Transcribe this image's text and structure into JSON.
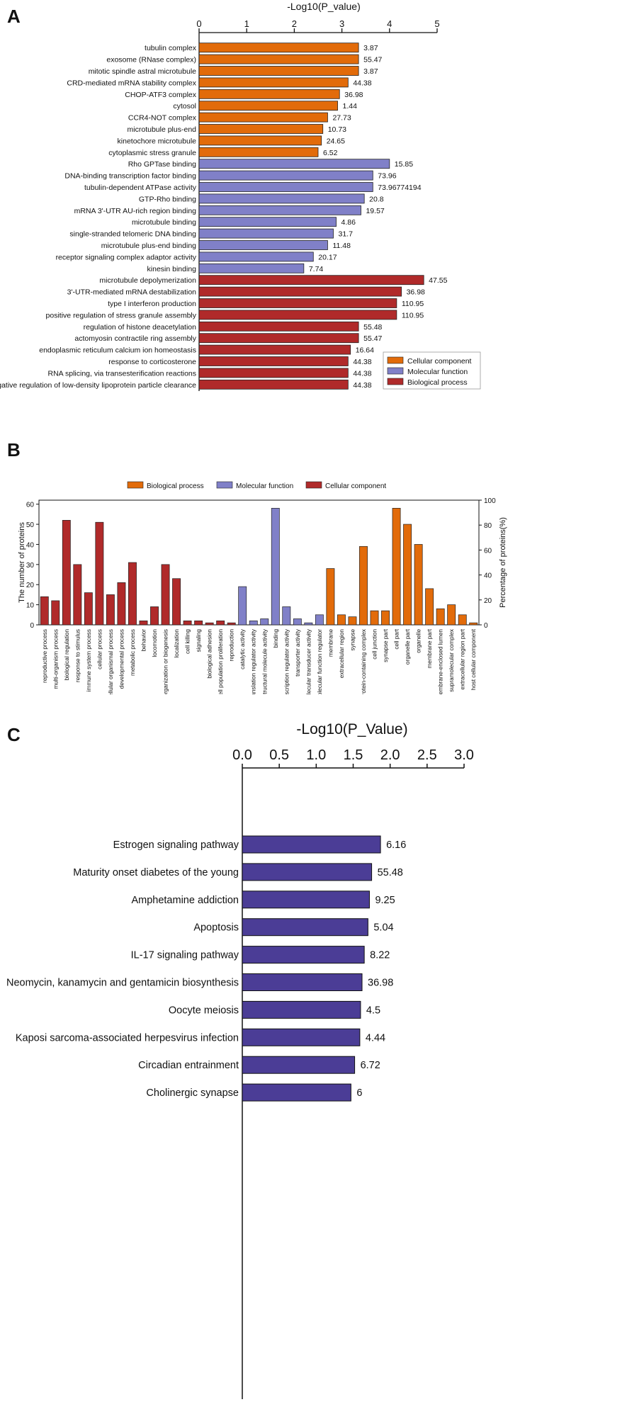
{
  "colors": {
    "cellular": "#e26b0a",
    "molecular": "#8080c8",
    "biological": "#b02a2a",
    "kegg": "#4b3d96",
    "axis": "#111111"
  },
  "panels": {
    "a": "A",
    "b": "B",
    "c": "C"
  },
  "chart_data": [
    {
      "id": "A",
      "type": "bar",
      "orientation": "horizontal",
      "xlabel": "-Log10(P_value)",
      "xlim": [
        0,
        5
      ],
      "xticks": [
        "0",
        "1",
        "2",
        "3",
        "4",
        "5"
      ],
      "legend": {
        "placement": "bottom-right",
        "entries": [
          {
            "name": "Cellular component",
            "color": "#e26b0a"
          },
          {
            "name": "Molecular function",
            "color": "#8080c8"
          },
          {
            "name": "Biological process",
            "color": "#b02a2a"
          }
        ]
      },
      "bars": [
        {
          "label": "tubulin complex",
          "value": 3.35,
          "annotation": "3.87",
          "group": "cellular"
        },
        {
          "label": "exosome (RNase complex)",
          "value": 3.35,
          "annotation": "55.47",
          "group": "cellular"
        },
        {
          "label": "mitotic spindle astral microtubule",
          "value": 3.35,
          "annotation": "3.87",
          "group": "cellular"
        },
        {
          "label": "CRD-mediated mRNA stability complex",
          "value": 3.13,
          "annotation": "44.38",
          "group": "cellular"
        },
        {
          "label": "CHOP-ATF3 complex",
          "value": 2.95,
          "annotation": "36.98",
          "group": "cellular"
        },
        {
          "label": "cytosol",
          "value": 2.91,
          "annotation": "1.44",
          "group": "cellular"
        },
        {
          "label": "CCR4-NOT complex",
          "value": 2.7,
          "annotation": "27.73",
          "group": "cellular"
        },
        {
          "label": "microtubule plus-end",
          "value": 2.6,
          "annotation": "10.73",
          "group": "cellular"
        },
        {
          "label": "kinetochore microtubule",
          "value": 2.57,
          "annotation": "24.65",
          "group": "cellular"
        },
        {
          "label": "cytoplasmic stress granule",
          "value": 2.5,
          "annotation": "6.52",
          "group": "cellular"
        },
        {
          "label": "Rho GPTase binding",
          "value": 4.0,
          "annotation": "15.85",
          "group": "molecular"
        },
        {
          "label": "DNA-binding transcription factor binding",
          "value": 3.65,
          "annotation": "73.96",
          "group": "molecular"
        },
        {
          "label": "tubulin-dependent ATPase activity",
          "value": 3.65,
          "annotation": "73.96774194",
          "group": "molecular"
        },
        {
          "label": "GTP-Rho binding",
          "value": 3.47,
          "annotation": "20.8",
          "group": "molecular"
        },
        {
          "label": "mRNA 3'-UTR AU-rich region binding",
          "value": 3.4,
          "annotation": "19.57",
          "group": "molecular"
        },
        {
          "label": "microtubule binding",
          "value": 2.88,
          "annotation": "4.86",
          "group": "molecular"
        },
        {
          "label": "single-stranded telomeric DNA binding",
          "value": 2.82,
          "annotation": "31.7",
          "group": "molecular"
        },
        {
          "label": "microtubule plus-end binding",
          "value": 2.7,
          "annotation": "11.48",
          "group": "molecular"
        },
        {
          "label": "receptor signaling complex adaptor activity",
          "value": 2.4,
          "annotation": "20.17",
          "group": "molecular"
        },
        {
          "label": "kinesin binding",
          "value": 2.2,
          "annotation": "7.74",
          "group": "molecular"
        },
        {
          "label": "microtubule depolymerization",
          "value": 4.72,
          "annotation": "47.55",
          "group": "biological"
        },
        {
          "label": "3'-UTR-mediated mRNA destabilization",
          "value": 4.25,
          "annotation": "36.98",
          "group": "biological"
        },
        {
          "label": "type I interferon production",
          "value": 4.15,
          "annotation": "110.95",
          "group": "biological"
        },
        {
          "label": "positive regulation of stress granule assembly",
          "value": 4.15,
          "annotation": "110.95",
          "group": "biological"
        },
        {
          "label": "regulation of histone deacetylation",
          "value": 3.35,
          "annotation": "55.48",
          "group": "biological"
        },
        {
          "label": "actomyosin contractile ring assembly",
          "value": 3.35,
          "annotation": "55.47",
          "group": "biological"
        },
        {
          "label": "endoplasmic reticulum calcium ion homeostasis",
          "value": 3.18,
          "annotation": "16.64",
          "group": "biological"
        },
        {
          "label": "response to corticosterone",
          "value": 3.13,
          "annotation": "44.38",
          "group": "biological"
        },
        {
          "label": "RNA splicing, via transesterification reactions",
          "value": 3.13,
          "annotation": "44.38",
          "group": "biological"
        },
        {
          "label": "negative regulation of low-density lipoprotein particle clearance",
          "value": 3.13,
          "annotation": "44.38",
          "group": "biological"
        }
      ]
    },
    {
      "id": "B",
      "type": "bar",
      "orientation": "vertical",
      "ylabel": "The number of proteins",
      "ylabel_right": "Percentage of proteins(%)",
      "ylim": [
        0,
        62
      ],
      "yticks": [
        "0",
        "10",
        "20",
        "30",
        "40",
        "50",
        "60"
      ],
      "yticks_right": [
        "0",
        "20",
        "40",
        "60",
        "80",
        "100"
      ],
      "legend": {
        "placement": "top-center",
        "entries": [
          {
            "name": "Biological process",
            "color": "#e26b0a"
          },
          {
            "name": "Molecular function",
            "color": "#8080c8"
          },
          {
            "name": "Cellular component",
            "color": "#b02a2a"
          }
        ]
      },
      "bars": [
        {
          "label": "reproductive process",
          "value": 14,
          "group": "biological"
        },
        {
          "label": "multi-organism process",
          "value": 12,
          "group": "biological"
        },
        {
          "label": "biological regulation",
          "value": 52,
          "group": "biological"
        },
        {
          "label": "response to stimulus",
          "value": 30,
          "group": "biological"
        },
        {
          "label": "immune system process",
          "value": 16,
          "group": "biological"
        },
        {
          "label": "cellular process",
          "value": 51,
          "group": "biological"
        },
        {
          "label": "multicellular organismal process",
          "value": 15,
          "group": "biological"
        },
        {
          "label": "developmental process",
          "value": 21,
          "group": "biological"
        },
        {
          "label": "metabolic process",
          "value": 31,
          "group": "biological"
        },
        {
          "label": "behavior",
          "value": 2,
          "group": "biological"
        },
        {
          "label": "locomotion",
          "value": 9,
          "group": "biological"
        },
        {
          "label": "cellular component organization or biogenesis",
          "value": 30,
          "group": "biological"
        },
        {
          "label": "localization",
          "value": 23,
          "group": "biological"
        },
        {
          "label": "cell killing",
          "value": 2,
          "group": "biological"
        },
        {
          "label": "signaling",
          "value": 2,
          "group": "biological"
        },
        {
          "label": "biological adhesion",
          "value": 1,
          "group": "biological"
        },
        {
          "label": "cell population proliferation",
          "value": 2,
          "group": "biological"
        },
        {
          "label": "reproduction",
          "value": 1,
          "group": "biological"
        },
        {
          "label": "catalytic activity",
          "value": 19,
          "group": "molecular"
        },
        {
          "label": "translation regulator activity",
          "value": 2,
          "group": "molecular"
        },
        {
          "label": "structural molecule activity",
          "value": 3,
          "group": "molecular"
        },
        {
          "label": "binding",
          "value": 58,
          "group": "molecular"
        },
        {
          "label": "transcription regulator activity",
          "value": 9,
          "group": "molecular"
        },
        {
          "label": "transporter activity",
          "value": 3,
          "group": "molecular"
        },
        {
          "label": "molecular transducer activity",
          "value": 1,
          "group": "molecular"
        },
        {
          "label": "molecular function regulator",
          "value": 5,
          "group": "molecular"
        },
        {
          "label": "membrane",
          "value": 28,
          "group": "cellular"
        },
        {
          "label": "extracellular region",
          "value": 5,
          "group": "cellular"
        },
        {
          "label": "synapse",
          "value": 4,
          "group": "cellular"
        },
        {
          "label": "protein-containing complex",
          "value": 39,
          "group": "cellular"
        },
        {
          "label": "cell junction",
          "value": 7,
          "group": "cellular"
        },
        {
          "label": "synapse part",
          "value": 7,
          "group": "cellular"
        },
        {
          "label": "cell part",
          "value": 58,
          "group": "cellular"
        },
        {
          "label": "organelle part",
          "value": 50,
          "group": "cellular"
        },
        {
          "label": "organelle",
          "value": 40,
          "group": "cellular"
        },
        {
          "label": "membrane part",
          "value": 18,
          "group": "cellular"
        },
        {
          "label": "membrane-enclosed lumen",
          "value": 8,
          "group": "cellular"
        },
        {
          "label": "supramolecular complex",
          "value": 10,
          "group": "cellular"
        },
        {
          "label": "extracellular region part",
          "value": 5,
          "group": "cellular"
        },
        {
          "label": "host cellular component",
          "value": 1,
          "group": "cellular"
        }
      ]
    },
    {
      "id": "C",
      "type": "bar",
      "orientation": "horizontal",
      "xlabel": "-Log10(P_Value)",
      "xlim": [
        0,
        3
      ],
      "xticks": [
        "0.0",
        "0.5",
        "1.0",
        "1.5",
        "2.0",
        "2.5",
        "3.0"
      ],
      "bars": [
        {
          "label": "Estrogen signaling pathway",
          "value": 1.87,
          "annotation": "6.16"
        },
        {
          "label": "Maturity onset diabetes of the young",
          "value": 1.75,
          "annotation": "55.48"
        },
        {
          "label": "Amphetamine addiction",
          "value": 1.72,
          "annotation": "9.25"
        },
        {
          "label": "Apoptosis",
          "value": 1.7,
          "annotation": "5.04"
        },
        {
          "label": "IL-17 signaling pathway",
          "value": 1.65,
          "annotation": "8.22"
        },
        {
          "label": "Neomycin, kanamycin and gentamicin biosynthesis",
          "value": 1.62,
          "annotation": "36.98"
        },
        {
          "label": "Oocyte meiosis",
          "value": 1.6,
          "annotation": "4.5"
        },
        {
          "label": "Kaposi sarcoma-associated herpesvirus infection",
          "value": 1.59,
          "annotation": "4.44"
        },
        {
          "label": "Circadian entrainment",
          "value": 1.52,
          "annotation": "6.72"
        },
        {
          "label": "Cholinergic synapse",
          "value": 1.47,
          "annotation": "6"
        }
      ]
    }
  ]
}
